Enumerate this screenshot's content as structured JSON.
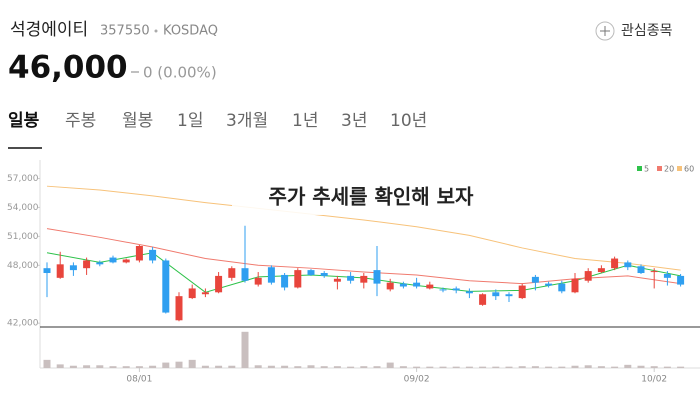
{
  "header": {
    "name": "석경에이티",
    "code": "357550",
    "market": "KOSDAQ",
    "price": "46,000",
    "change": "0 (0.00%)",
    "watch_button": "관심종목"
  },
  "tabs": [
    "일봉",
    "주봉",
    "월봉",
    "1일",
    "3개월",
    "1년",
    "3년",
    "10년"
  ],
  "chart_data": {
    "type": "candlestick",
    "annotation": "주가 추세를 확인해 보자",
    "up_color": "#e8453c",
    "down_color": "#2f9ff0",
    "volume_color": "#c9bfbf",
    "ylim": [
      41500,
      58500
    ],
    "yticks": [
      {
        "value": 57000,
        "label": "57,000"
      },
      {
        "value": 54000,
        "label": "54,000"
      },
      {
        "value": 51000,
        "label": "51,000"
      },
      {
        "value": 48000,
        "label": "48,000"
      },
      {
        "value": 42000,
        "label": "42,000"
      }
    ],
    "volume_lim": [
      0,
      420000
    ],
    "categories": [
      null,
      null,
      null,
      null,
      null,
      null,
      null,
      "08/01",
      null,
      null,
      null,
      null,
      null,
      null,
      null,
      null,
      null,
      null,
      null,
      null,
      null,
      null,
      null,
      null,
      null,
      null,
      null,
      null,
      "09/02",
      null,
      null,
      null,
      null,
      null,
      null,
      null,
      null,
      null,
      null,
      null,
      null,
      null,
      null,
      null,
      null,
      null,
      "10/02",
      null,
      null
    ],
    "open": [
      47700,
      46700,
      48000,
      47700,
      48300,
      48800,
      48300,
      48500,
      49600,
      48500,
      42300,
      44600,
      45000,
      45200,
      46700,
      47700,
      46000,
      47800,
      47000,
      45700,
      47500,
      47200,
      46300,
      46900,
      46200,
      47500,
      45500,
      46100,
      46200,
      45600,
      45500,
      45600,
      45300,
      43900,
      45200,
      45000,
      44600,
      46800,
      46100,
      46100,
      45200,
      46400,
      47300,
      47700,
      48300,
      47900,
      47300,
      47100,
      46900
    ],
    "high": [
      48300,
      49400,
      48300,
      48800,
      48500,
      49000,
      48700,
      50100,
      49900,
      48700,
      45200,
      46000,
      45600,
      47300,
      47900,
      52100,
      47300,
      48000,
      47200,
      47700,
      47600,
      47400,
      46900,
      47300,
      47200,
      50000,
      46600,
      46300,
      46700,
      46300,
      45700,
      45800,
      45600,
      45100,
      45500,
      45200,
      46100,
      47000,
      46300,
      46400,
      47200,
      47700,
      48000,
      48900,
      48500,
      48100,
      47700,
      47400,
      47100
    ],
    "low": [
      44700,
      46600,
      46900,
      47000,
      47900,
      48200,
      48200,
      48300,
      48200,
      43000,
      42200,
      44500,
      44700,
      45100,
      46400,
      46200,
      45800,
      46000,
      45400,
      45600,
      46900,
      46700,
      45500,
      46100,
      45600,
      44800,
      45300,
      45600,
      45600,
      45500,
      45200,
      45100,
      44600,
      43800,
      44400,
      44200,
      44500,
      45400,
      45700,
      45100,
      45100,
      46200,
      47200,
      47500,
      47500,
      47100,
      45600,
      45900,
      45800
    ],
    "close": [
      47200,
      48100,
      47500,
      48500,
      48100,
      48300,
      48600,
      50000,
      48500,
      43100,
      44800,
      45600,
      45200,
      46900,
      47700,
      46400,
      46700,
      46200,
      45700,
      47500,
      47000,
      46900,
      46600,
      46400,
      46900,
      46100,
      46200,
      45800,
      45800,
      46000,
      45400,
      45400,
      45100,
      45000,
      44800,
      44800,
      45900,
      46200,
      45900,
      45300,
      46600,
      47400,
      47700,
      48700,
      47800,
      47200,
      47400,
      46700,
      46000
    ],
    "volume": [
      90000,
      40000,
      25000,
      30000,
      30000,
      20000,
      20000,
      20000,
      25000,
      60000,
      70000,
      90000,
      25000,
      25000,
      25000,
      400000,
      30000,
      25000,
      25000,
      20000,
      30000,
      20000,
      20000,
      15000,
      20000,
      20000,
      60000,
      20000,
      15000,
      15000,
      15000,
      15000,
      15000,
      15000,
      15000,
      15000,
      20000,
      20000,
      15000,
      15000,
      25000,
      30000,
      20000,
      15000,
      35000,
      25000,
      20000,
      15000,
      15000
    ],
    "moving_averages": [
      {
        "name": "5",
        "color": "#2ec24a",
        "x": [
          0,
          4,
          8,
          12,
          16,
          20,
          24,
          28,
          32,
          36,
          40,
          44,
          48
        ],
        "values": [
          49300,
          48300,
          49300,
          45200,
          46800,
          47000,
          46700,
          45900,
          45300,
          45400,
          46400,
          48000,
          46900
        ]
      },
      {
        "name": "20",
        "color": "#f07a6e",
        "x": [
          0,
          4,
          8,
          12,
          16,
          20,
          24,
          28,
          32,
          36,
          40,
          44,
          48
        ],
        "values": [
          51800,
          50900,
          49900,
          48700,
          48000,
          47700,
          47300,
          47000,
          46400,
          46100,
          46600,
          46900,
          46100
        ]
      },
      {
        "name": "60",
        "color": "#f7c27a",
        "x": [
          0,
          4,
          8,
          12,
          16,
          20,
          24,
          28,
          32,
          36,
          40,
          44,
          48
        ],
        "values": [
          56200,
          55800,
          55200,
          54500,
          53900,
          53300,
          52700,
          52000,
          51100,
          49800,
          48700,
          48200,
          47500
        ]
      }
    ]
  }
}
